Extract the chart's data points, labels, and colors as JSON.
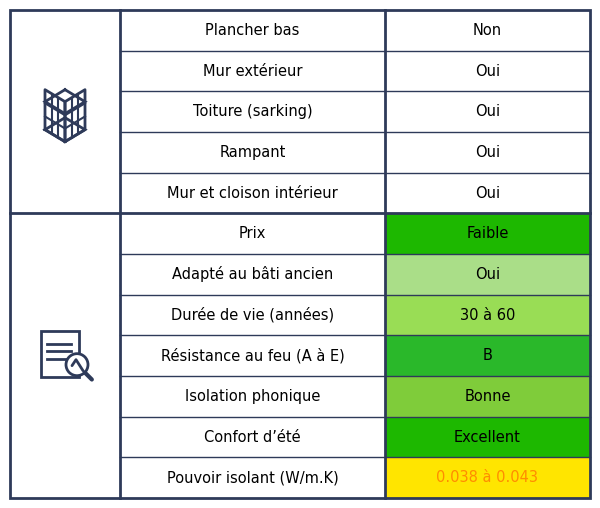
{
  "section1_rows": [
    {
      "label": "Pouvoir isolant (W/m.K)",
      "value": "0.038 à 0.043",
      "bg": "#FFE500",
      "fg": "#FF8C00",
      "bold": false
    },
    {
      "label": "Confort d’été",
      "value": "Excellent",
      "bg": "#1DB800",
      "fg": "#000000",
      "bold": false
    },
    {
      "label": "Isolation phonique",
      "value": "Bonne",
      "bg": "#7FCC3A",
      "fg": "#000000",
      "bold": false
    },
    {
      "label": "Résistance au feu (A à E)",
      "value": "B",
      "bg": "#2AB82A",
      "fg": "#000000",
      "bold": false
    },
    {
      "label": "Durée de vie (années)",
      "value": "30 à 60",
      "bg": "#99DD55",
      "fg": "#000000",
      "bold": false
    },
    {
      "label": "Adapté au bâti ancien",
      "value": "Oui",
      "bg": "#AADE88",
      "fg": "#000000",
      "bold": false
    },
    {
      "label": "Prix",
      "value": "Faible",
      "bg": "#1DB800",
      "fg": "#000000",
      "bold": false
    }
  ],
  "section2_rows": [
    {
      "label": "Mur et cloison intérieur",
      "value": "Oui",
      "bg": "#ffffff",
      "fg": "#000000"
    },
    {
      "label": "Rampant",
      "value": "Oui",
      "bg": "#ffffff",
      "fg": "#000000"
    },
    {
      "label": "Toiture (sarking)",
      "value": "Oui",
      "bg": "#ffffff",
      "fg": "#000000"
    },
    {
      "label": "Mur extérieur",
      "value": "Oui",
      "bg": "#ffffff",
      "fg": "#000000"
    },
    {
      "label": "Plancher bas",
      "value": "Non",
      "bg": "#ffffff",
      "fg": "#000000"
    }
  ],
  "border_color": "#2E3A59",
  "bg_color": "#ffffff",
  "label_text_color": "#000000",
  "font_size_label": 10.5,
  "font_size_value": 10.5,
  "icon_color": "#2E3A59"
}
